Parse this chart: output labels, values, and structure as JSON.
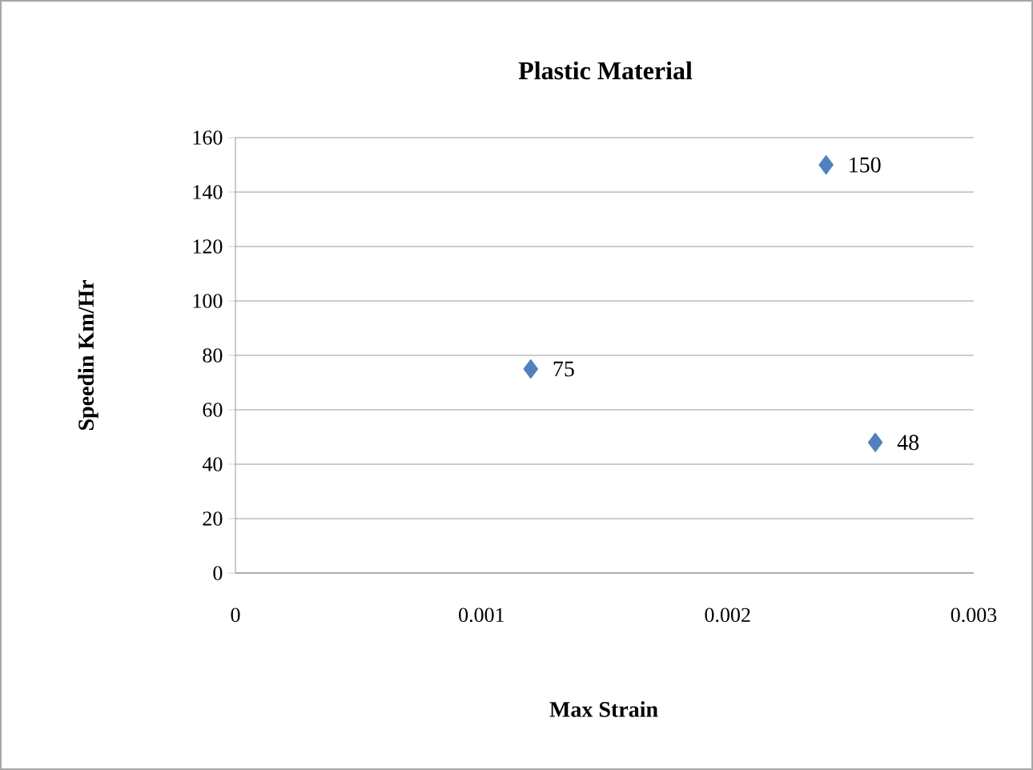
{
  "chart_data": {
    "type": "scatter",
    "title": "Plastic Material",
    "xlabel": "Max Strain",
    "ylabel": "Speedin Km/Hr",
    "x": [
      0.0012,
      0.0024,
      0.0026
    ],
    "values": [
      75,
      150,
      48
    ],
    "color": "#4f81bd",
    "marker": "diamond",
    "data_labels": true,
    "grid": "y",
    "xlim": [
      0,
      0.003
    ],
    "xticks": [
      0,
      0.001,
      0.002,
      0.003
    ],
    "ylim": [
      0,
      160
    ],
    "yticks": [
      0,
      20,
      40,
      60,
      80,
      100,
      120,
      140,
      160
    ]
  }
}
